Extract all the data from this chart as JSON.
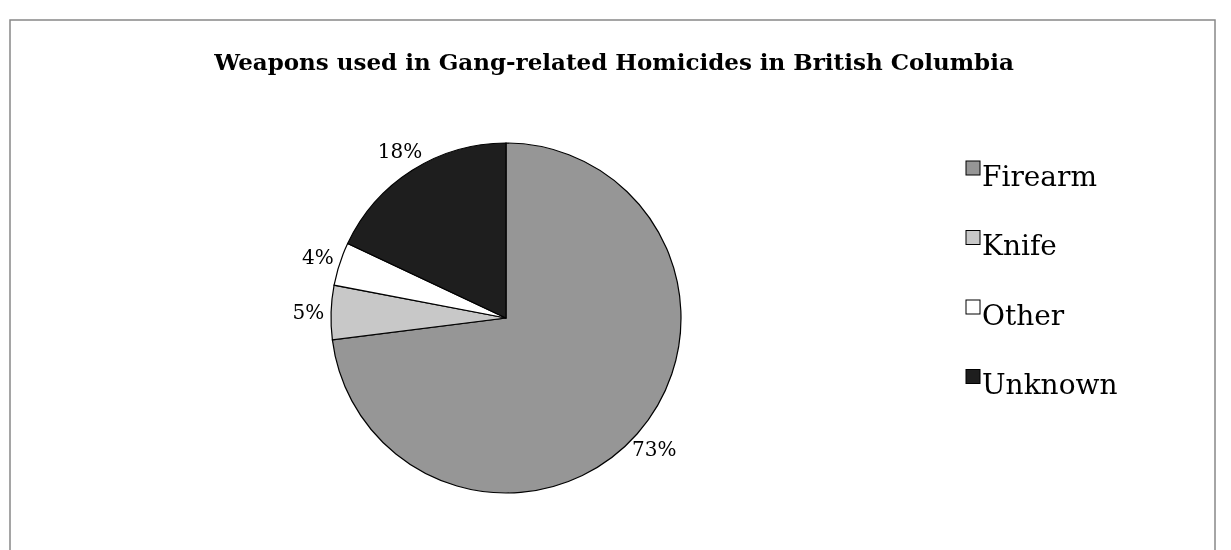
{
  "chart_data": {
    "type": "pie",
    "title": "Weapons used in Gang-related Homicides in British Columbia",
    "categories": [
      "Firearm",
      "Knife",
      "Other",
      "Unknown"
    ],
    "values": [
      73,
      5,
      4,
      18
    ],
    "colors": [
      "#969696",
      "#c8c8c8",
      "#ffffff",
      "#1e1e1e"
    ],
    "value_labels": [
      "73%",
      "5%",
      "4%",
      "18%"
    ],
    "legend": "right"
  }
}
